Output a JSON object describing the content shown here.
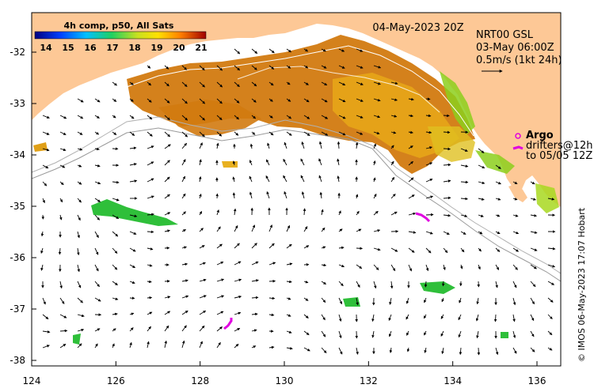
{
  "map": {
    "product": "4h comp, p50, All Sats",
    "date": "04-May-2023 20Z",
    "current_source": "NRT00 GSL",
    "current_time": "03-May 06:00Z",
    "arrow_scale": "0.5m/s (1kt 24h)",
    "argo_label": "Argo",
    "drifter_label_1": "drifters@12h",
    "drifter_label_2": "to 05/05 12Z",
    "credit": "© IMOS 06-May-2023 17:07 Hobart",
    "colorbar_ticks": [
      "14",
      "15",
      "16",
      "17",
      "18",
      "19",
      "20",
      "21"
    ],
    "x_ticks": [
      "124",
      "126",
      "128",
      "130",
      "132",
      "134",
      "136"
    ],
    "y_ticks": [
      "-32",
      "-33",
      "-34",
      "-35",
      "-36",
      "-37",
      "-38"
    ],
    "colors": {
      "land": "#fdc896",
      "sst_warm": "#d27a10",
      "sst_mid": "#e8b020",
      "sst_cool": "#8ccf1c",
      "sst_cold": "#2fbf3a",
      "argo": "#e000e0",
      "drifter": "#e000e0"
    }
  }
}
